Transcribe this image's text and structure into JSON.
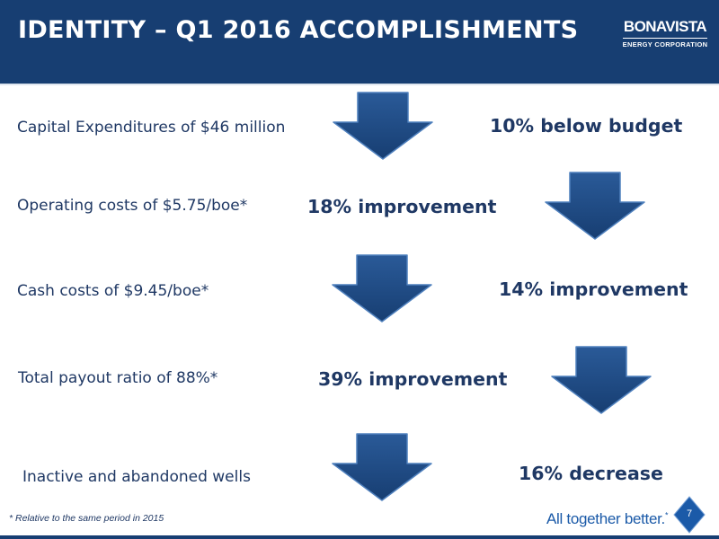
{
  "slide": {
    "title": "IDENTITY – Q1 2016 ACCOMPLISHMENTS",
    "logo": {
      "name": "BONAVISTA",
      "subtitle": "ENERGY CORPORATION"
    },
    "items": [
      {
        "label": "Capital Expenditures of $46 million",
        "result": "10% below budget",
        "arrow": "down-arrow-icon"
      },
      {
        "label": "Operating costs of $5.75/boe*",
        "result": "18% improvement",
        "arrow": "down-arrow-icon"
      },
      {
        "label": "Cash costs of $9.45/boe*",
        "result": "14% improvement",
        "arrow": "down-arrow-icon"
      },
      {
        "label": "Total payout ratio of 88%*",
        "result": "39% improvement",
        "arrow": "down-arrow-icon"
      },
      {
        "label": "Inactive and abandoned wells",
        "result": "16% decrease",
        "arrow": "down-arrow-icon"
      }
    ],
    "footnote": "* Relative to the same period in 2015",
    "tagline": "All together better.",
    "tagline_mark": "*",
    "page_number": "7",
    "colors": {
      "header": "#173e72",
      "text": "#1f3864",
      "arrow_fill": "#173e72",
      "arrow_highlight": "#3a6fb0",
      "tagline": "#1b5aa8"
    }
  }
}
